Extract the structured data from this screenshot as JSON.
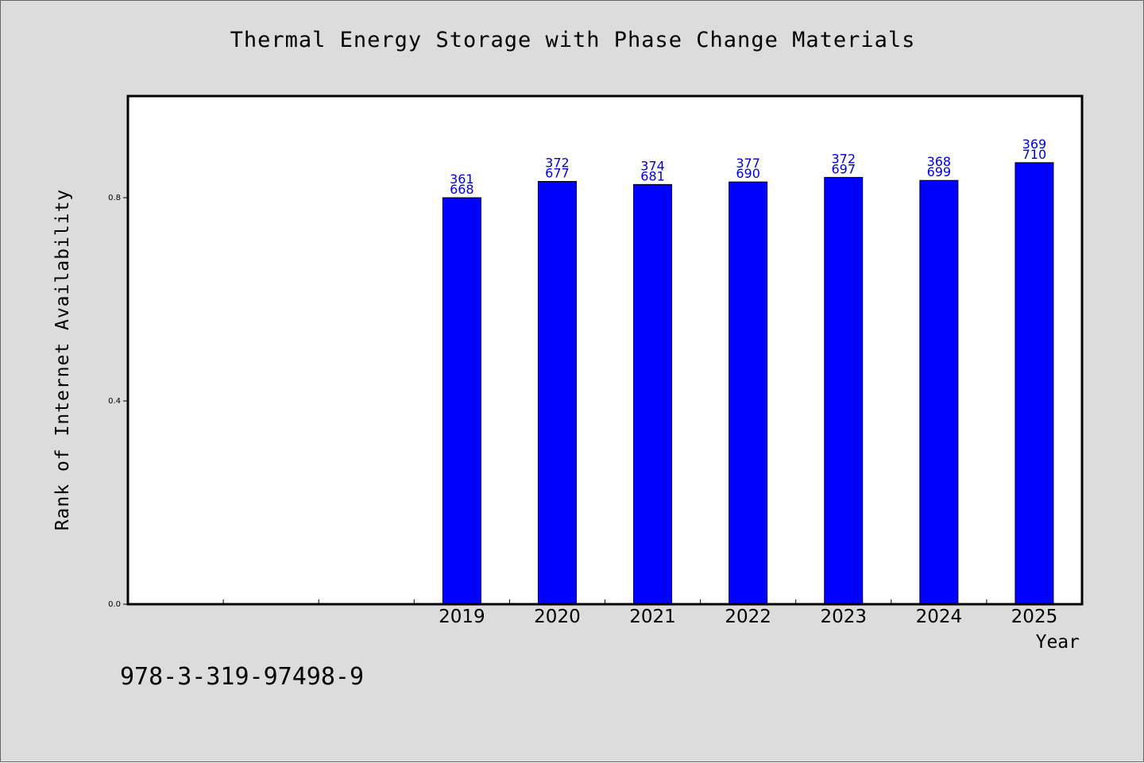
{
  "chart_data": {
    "type": "bar",
    "title": "Thermal Energy Storage with Phase Change Materials",
    "xlabel": "Year",
    "ylabel": "Rank of Internet Availability",
    "categories": [
      "",
      "",
      "",
      "2019",
      "2020",
      "2021",
      "2022",
      "2023",
      "2024",
      "2025"
    ],
    "values": [
      null,
      null,
      null,
      0.8,
      0.832,
      0.826,
      0.831,
      0.84,
      0.834,
      0.869
    ],
    "bar_labels": [
      null,
      null,
      null,
      [
        "361",
        "668"
      ],
      [
        "372",
        "677"
      ],
      [
        "374",
        "681"
      ],
      [
        "377",
        "690"
      ],
      [
        "372",
        "697"
      ],
      [
        "368",
        "699"
      ],
      [
        "369",
        "710"
      ]
    ],
    "ylim": [
      0,
      1.0
    ],
    "yticks": [
      0.0,
      0.4,
      0.8
    ],
    "ytick_labels": [
      "0.0",
      "0.4",
      "0.8"
    ],
    "grid": false,
    "legend": "none",
    "colors": {
      "bar_fill": "#0000ff",
      "bar_label": "#0000cc",
      "background": "#dcdcdc",
      "plot_background": "#ffffff"
    }
  },
  "footer": {
    "code": "978-3-319-97498-9"
  }
}
